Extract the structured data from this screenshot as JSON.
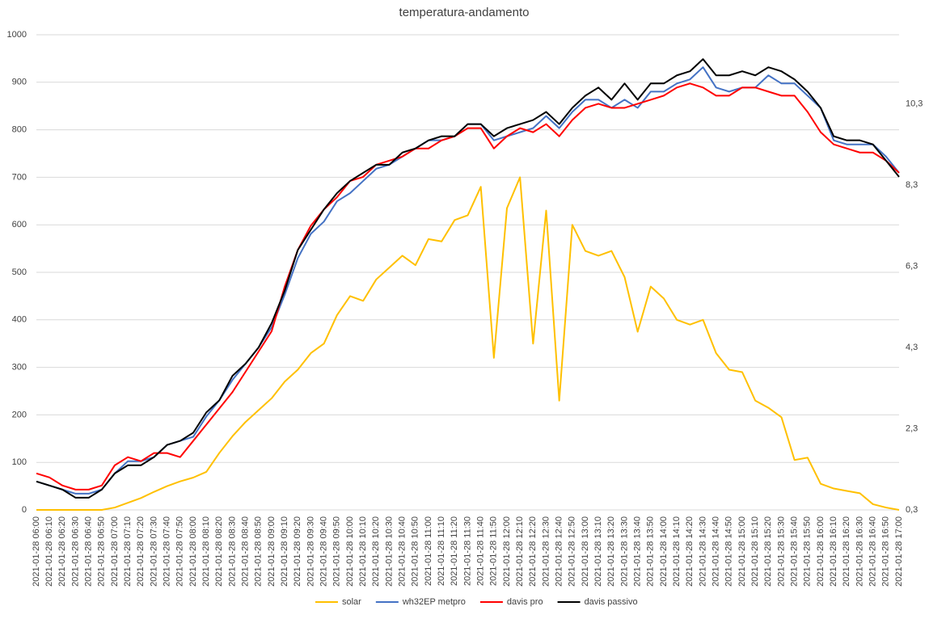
{
  "chart_data": {
    "type": "line",
    "title": "temperatura-andamento",
    "categories": [
      "2021-01-28 06:00",
      "2021-01-28 06:10",
      "2021-01-28 06:20",
      "2021-01-28 06:30",
      "2021-01-28 06:40",
      "2021-01-28 06:50",
      "2021-01-28 07:00",
      "2021-01-28 07:10",
      "2021-01-28 07:20",
      "2021-01-28 07:30",
      "2021-01-28 07:40",
      "2021-01-28 07:50",
      "2021-01-28 08:00",
      "2021-01-28 08:10",
      "2021-01-28 08:20",
      "2021-01-28 08:30",
      "2021-01-28 08:40",
      "2021-01-28 08:50",
      "2021-01-28 09:00",
      "2021-01-28 09:10",
      "2021-01-28 09:20",
      "2021-01-28 09:30",
      "2021-01-28 09:40",
      "2021-01-28 09:50",
      "2021-01-28 10:00",
      "2021-01-28 10:10",
      "2021-01-28 10:20",
      "2021-01-28 10:30",
      "2021-01-28 10:40",
      "2021-01-28 10:50",
      "2021-01-28 11:00",
      "2021-01-28 11:10",
      "2021-01-28 11:20",
      "2021-01-28 11:30",
      "2021-01-28 11:40",
      "2021-01-28 11:50",
      "2021-01-28 12:00",
      "2021-01-28 12:10",
      "2021-01-28 12:20",
      "2021-01-28 12:30",
      "2021-01-28 12:40",
      "2021-01-28 12:50",
      "2021-01-28 13:00",
      "2021-01-28 13:10",
      "2021-01-28 13:20",
      "2021-01-28 13:30",
      "2021-01-28 13:40",
      "2021-01-28 13:50",
      "2021-01-28 14:00",
      "2021-01-28 14:10",
      "2021-01-28 14:20",
      "2021-01-28 14:30",
      "2021-01-28 14:40",
      "2021-01-28 14:50",
      "2021-01-28 15:00",
      "2021-01-28 15:10",
      "2021-01-28 15:20",
      "2021-01-28 15:30",
      "2021-01-28 15:40",
      "2021-01-28 15:50",
      "2021-01-28 16:00",
      "2021-01-28 16:10",
      "2021-01-28 16:20",
      "2021-01-28 16:30",
      "2021-01-28 16:40",
      "2021-01-28 16:50",
      "2021-01-28 17:00"
    ],
    "series": [
      {
        "name": "solar",
        "color": "#ffc000",
        "values": [
          0,
          0,
          0,
          0,
          0,
          0,
          5,
          15,
          25,
          38,
          50,
          60,
          68,
          80,
          120,
          155,
          185,
          210,
          235,
          270,
          295,
          330,
          350,
          410,
          450,
          440,
          485,
          510,
          535,
          515,
          570,
          565,
          610,
          620,
          680,
          320,
          635,
          700,
          350,
          630,
          230,
          600,
          545,
          535,
          545,
          490,
          375,
          470,
          445,
          400,
          390,
          400,
          330,
          295,
          290,
          230,
          215,
          195,
          105,
          110,
          55,
          45,
          40,
          35,
          12,
          5,
          0
        ]
      },
      {
        "name": "wh32EP metpro",
        "color": "#4472c4",
        "axis": "y2",
        "values": [
          1.0,
          0.9,
          0.8,
          0.7,
          0.7,
          0.8,
          1.2,
          1.5,
          1.5,
          1.6,
          1.9,
          2.0,
          2.1,
          2.6,
          3.0,
          3.5,
          3.9,
          4.3,
          4.8,
          5.6,
          6.5,
          7.1,
          7.4,
          7.9,
          8.1,
          8.4,
          8.7,
          8.8,
          9.0,
          9.2,
          9.4,
          9.4,
          9.5,
          9.8,
          9.8,
          9.4,
          9.5,
          9.6,
          9.7,
          10.0,
          9.7,
          10.1,
          10.4,
          10.4,
          10.2,
          10.4,
          10.2,
          10.6,
          10.6,
          10.8,
          10.9,
          11.2,
          10.7,
          10.6,
          10.7,
          10.7,
          11.0,
          10.8,
          10.8,
          10.5,
          10.2,
          9.4,
          9.3,
          9.3,
          9.3,
          9.0,
          8.6
        ]
      },
      {
        "name": "davis pro",
        "color": "#ff0000",
        "axis": "y2",
        "values": [
          1.2,
          1.1,
          0.9,
          0.8,
          0.8,
          0.9,
          1.4,
          1.6,
          1.5,
          1.7,
          1.7,
          1.6,
          2.0,
          2.4,
          2.8,
          3.2,
          3.7,
          4.2,
          4.7,
          5.8,
          6.7,
          7.3,
          7.7,
          8.0,
          8.4,
          8.5,
          8.8,
          8.9,
          9.0,
          9.2,
          9.2,
          9.4,
          9.5,
          9.7,
          9.7,
          9.2,
          9.5,
          9.7,
          9.6,
          9.8,
          9.5,
          9.9,
          10.2,
          10.3,
          10.2,
          10.2,
          10.3,
          10.4,
          10.5,
          10.7,
          10.8,
          10.7,
          10.5,
          10.5,
          10.7,
          10.7,
          10.6,
          10.5,
          10.5,
          10.1,
          9.6,
          9.3,
          9.2,
          9.1,
          9.1,
          8.9,
          8.6
        ]
      },
      {
        "name": "davis passivo",
        "color": "#000000",
        "axis": "y2",
        "values": [
          1.0,
          0.9,
          0.8,
          0.6,
          0.6,
          0.8,
          1.2,
          1.4,
          1.4,
          1.6,
          1.9,
          2.0,
          2.2,
          2.7,
          3.0,
          3.6,
          3.9,
          4.3,
          4.9,
          5.7,
          6.7,
          7.2,
          7.7,
          8.1,
          8.4,
          8.6,
          8.8,
          8.8,
          9.1,
          9.2,
          9.4,
          9.5,
          9.5,
          9.8,
          9.8,
          9.5,
          9.7,
          9.8,
          9.9,
          10.1,
          9.8,
          10.2,
          10.5,
          10.7,
          10.4,
          10.8,
          10.4,
          10.8,
          10.8,
          11.0,
          11.1,
          11.4,
          11.0,
          11.0,
          11.1,
          11.0,
          11.2,
          11.1,
          10.9,
          10.6,
          10.2,
          9.5,
          9.4,
          9.4,
          9.3,
          8.9,
          8.5
        ]
      }
    ],
    "ylim": [
      0,
      1000
    ],
    "yticks": [
      0,
      100,
      200,
      300,
      400,
      500,
      600,
      700,
      800,
      900,
      1000
    ],
    "y2lim": [
      0.3,
      12.0
    ],
    "y2ticks": [
      {
        "value": 0.3,
        "label": "0,3"
      },
      {
        "value": 2.3,
        "label": "2,3"
      },
      {
        "value": 4.3,
        "label": "4,3"
      },
      {
        "value": 6.3,
        "label": "6,3"
      },
      {
        "value": 8.3,
        "label": "8,3"
      },
      {
        "value": 10.3,
        "label": "10,3"
      }
    ],
    "grid": true,
    "legend": "bottom"
  }
}
